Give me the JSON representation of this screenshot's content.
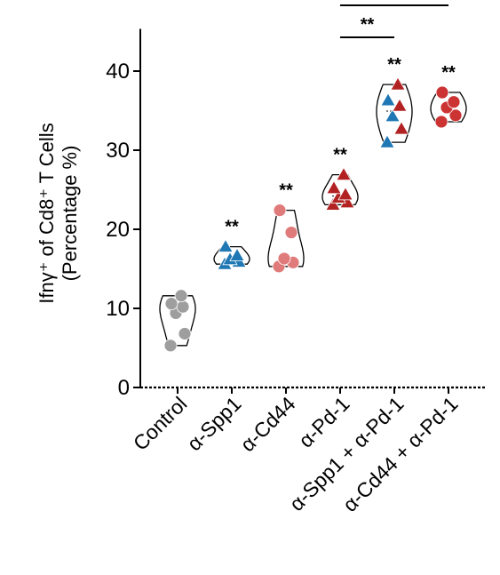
{
  "chart_data": {
    "type": "scatter",
    "ylabel_line1": "Ifnγ⁺ of Cd8⁺ T Cells",
    "ylabel_line2": "(Percentage %)",
    "ylim": [
      0,
      45
    ],
    "yticks": [
      "0",
      "10",
      "20",
      "30",
      "40"
    ],
    "ytick_values": [
      0,
      10,
      20,
      30,
      40
    ],
    "grid": false,
    "categories": [
      "Control",
      "α-Spp1",
      "α-Cd44",
      "α-Pd-1",
      "α-Spp1 + α-Pd-1",
      "α-Cd44 + α-Pd-1"
    ],
    "groups": [
      {
        "label": "Control",
        "marker": "circle",
        "color": "#9e9e9e",
        "significance": "",
        "values": [
          5.3,
          6.8,
          9.4,
          10.2,
          10.6,
          11.6
        ]
      },
      {
        "label": "α-Spp1",
        "marker": "triangle",
        "color": "#1f78b4",
        "significance": "**",
        "values": [
          15.6,
          15.9,
          16.2,
          16.7,
          17.8
        ]
      },
      {
        "label": "α-Cd44",
        "marker": "circle",
        "color": "#e07b7b",
        "significance": "**",
        "values": [
          15.3,
          15.8,
          16.3,
          19.6,
          22.4
        ]
      },
      {
        "label": "α-Pd-1",
        "marker": "triangle",
        "color": "#b22222",
        "significance": "**",
        "values": [
          23.1,
          23.4,
          24.0,
          24.4,
          25.2,
          26.9
        ]
      },
      {
        "label": "α-Spp1 + α-Pd-1",
        "marker": "triangle",
        "color": "#1f78b4",
        "alt_color": "#b22222",
        "significance": "**",
        "values": [
          31.0,
          32.7,
          34.3,
          35.6,
          36.3,
          38.3
        ]
      },
      {
        "label": "α-Cd44 + α-Pd-1",
        "marker": "circle",
        "color": "#cc3333",
        "significance": "**",
        "values": [
          33.6,
          34.4,
          35.4,
          36.1,
          37.3
        ]
      }
    ],
    "comparisons": [
      {
        "from": "α-Pd-1",
        "to": "α-Spp1 + α-Pd-1",
        "label": "**"
      },
      {
        "from": "α-Pd-1",
        "to": "α-Cd44 + α-Pd-1",
        "label": ""
      }
    ]
  }
}
